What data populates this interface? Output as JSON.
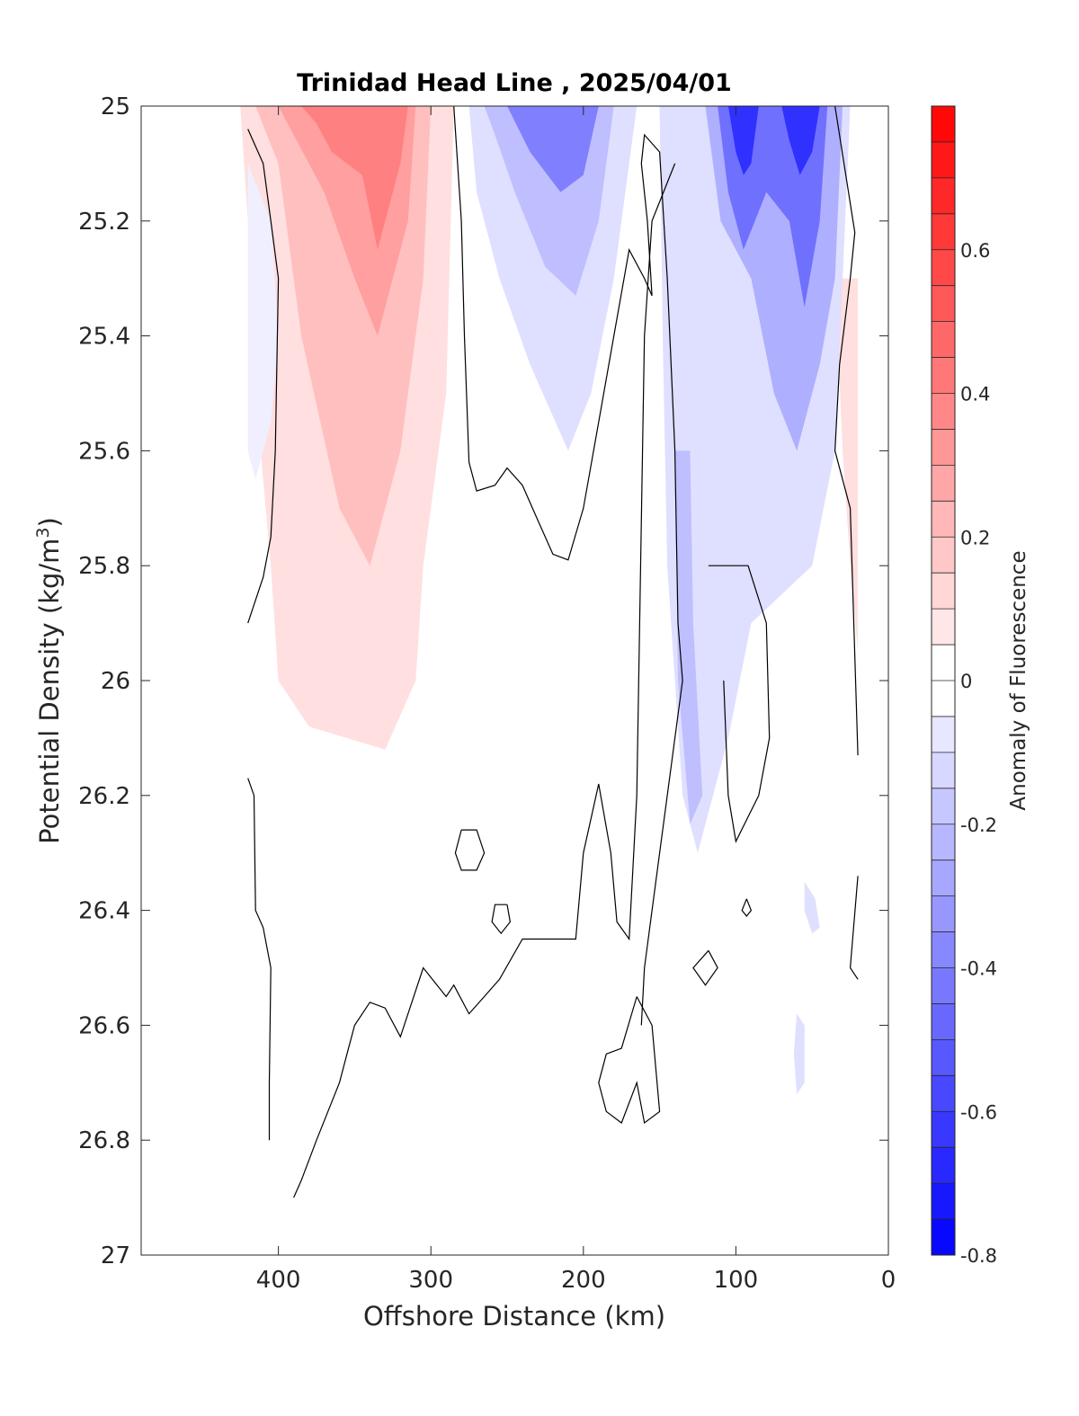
{
  "chart_data": {
    "type": "heatmap",
    "title": "Trinidad Head Line , 2025/04/01",
    "xlabel": "Offshore Distance (km)",
    "ylabel": "Potential Density (kg/m",
    "ylabel_sup": "3",
    "ylabel_close": ")",
    "xlim": [
      490,
      0
    ],
    "ylim": [
      25,
      27
    ],
    "x_reversed": true,
    "y_reversed": true,
    "xticks": [
      400,
      300,
      200,
      100,
      0
    ],
    "yticks": [
      "25",
      "25.2",
      "25.4",
      "25.6",
      "25.8",
      "26",
      "26.2",
      "26.4",
      "26.6",
      "26.8",
      "27"
    ],
    "yticks_values": [
      25,
      25.2,
      25.4,
      25.6,
      25.8,
      26,
      26.2,
      26.4,
      26.6,
      26.8,
      27
    ],
    "colorbar": {
      "label": "Anomaly of Fluorescence",
      "min": -0.8,
      "max": 0.8,
      "step": 0.05,
      "ticks": [
        "0.6",
        "0.4",
        "0.2",
        "0",
        "-0.2",
        "-0.4",
        "-0.6",
        "-0.8"
      ],
      "ticks_values": [
        0.6,
        0.4,
        0.2,
        0,
        -0.2,
        -0.4,
        -0.6,
        -0.8
      ],
      "color_min": "#0000ff",
      "color_mid": "#ffffff",
      "color_max": "#ff0000"
    },
    "anomaly_regions": [
      {
        "value": 0.08,
        "polygon": [
          [
            425,
            25
          ],
          [
            285,
            25
          ],
          [
            290,
            25.5
          ],
          [
            305,
            25.8
          ],
          [
            310,
            26.0
          ],
          [
            330,
            26.12
          ],
          [
            380,
            26.08
          ],
          [
            400,
            26.0
          ],
          [
            405,
            25.8
          ],
          [
            415,
            25.5
          ],
          [
            420,
            25.2
          ]
        ]
      },
      {
        "value": 0.2,
        "polygon": [
          [
            415,
            25
          ],
          [
            300,
            25
          ],
          [
            305,
            25.3
          ],
          [
            320,
            25.6
          ],
          [
            340,
            25.8
          ],
          [
            360,
            25.7
          ],
          [
            385,
            25.4
          ],
          [
            400,
            25.1
          ]
        ]
      },
      {
        "value": 0.32,
        "polygon": [
          [
            400,
            25
          ],
          [
            310,
            25
          ],
          [
            315,
            25.2
          ],
          [
            335,
            25.4
          ],
          [
            350,
            25.3
          ],
          [
            370,
            25.15
          ],
          [
            390,
            25.05
          ]
        ]
      },
      {
        "value": 0.42,
        "polygon": [
          [
            385,
            25
          ],
          [
            315,
            25
          ],
          [
            320,
            25.1
          ],
          [
            335,
            25.25
          ],
          [
            345,
            25.12
          ],
          [
            365,
            25.08
          ],
          [
            375,
            25.03
          ]
        ]
      },
      {
        "value": 0.1,
        "polygon": [
          [
            35,
            25.3
          ],
          [
            20,
            25.3
          ],
          [
            20,
            25.95
          ],
          [
            25,
            25.8
          ],
          [
            30,
            25.6
          ]
        ]
      },
      {
        "value": -0.07,
        "polygon": [
          [
            420,
            25.1
          ],
          [
            405,
            25.2
          ],
          [
            400,
            25.4
          ],
          [
            405,
            25.55
          ],
          [
            415,
            25.65
          ],
          [
            420,
            25.6
          ]
        ]
      },
      {
        "value": -0.08,
        "polygon": [
          [
            275,
            25
          ],
          [
            165,
            25
          ],
          [
            180,
            25.3
          ],
          [
            195,
            25.5
          ],
          [
            210,
            25.6
          ],
          [
            235,
            25.45
          ],
          [
            255,
            25.3
          ],
          [
            270,
            25.15
          ]
        ]
      },
      {
        "value": -0.22,
        "polygon": [
          [
            265,
            25
          ],
          [
            180,
            25
          ],
          [
            190,
            25.2
          ],
          [
            205,
            25.33
          ],
          [
            225,
            25.28
          ],
          [
            245,
            25.15
          ],
          [
            258,
            25.05
          ]
        ]
      },
      {
        "value": -0.38,
        "polygon": [
          [
            250,
            25
          ],
          [
            190,
            25
          ],
          [
            200,
            25.12
          ],
          [
            215,
            25.15
          ],
          [
            235,
            25.08
          ]
        ]
      },
      {
        "value": -0.08,
        "polygon": [
          [
            150,
            25
          ],
          [
            25,
            25
          ],
          [
            30,
            25.3
          ],
          [
            35,
            25.6
          ],
          [
            50,
            25.8
          ],
          [
            70,
            25.85
          ],
          [
            90,
            25.9
          ],
          [
            105,
            26.1
          ],
          [
            125,
            26.3
          ],
          [
            135,
            26.2
          ],
          [
            145,
            25.8
          ],
          [
            148,
            25.4
          ]
        ]
      },
      {
        "value": -0.18,
        "polygon": [
          [
            140,
            25.6
          ],
          [
            130,
            25.6
          ],
          [
            128,
            25.9
          ],
          [
            122,
            26.2
          ],
          [
            130,
            26.25
          ],
          [
            138,
            26.0
          ]
        ]
      },
      {
        "value": -0.25,
        "polygon": [
          [
            120,
            25
          ],
          [
            30,
            25
          ],
          [
            35,
            25.3
          ],
          [
            45,
            25.45
          ],
          [
            60,
            25.6
          ],
          [
            75,
            25.5
          ],
          [
            90,
            25.3
          ],
          [
            110,
            25.2
          ]
        ]
      },
      {
        "value": -0.45,
        "polygon": [
          [
            112,
            25
          ],
          [
            40,
            25
          ],
          [
            45,
            25.2
          ],
          [
            55,
            25.35
          ],
          [
            65,
            25.2
          ],
          [
            80,
            25.15
          ],
          [
            95,
            25.25
          ],
          [
            105,
            25.15
          ]
        ]
      },
      {
        "value": -0.65,
        "polygon": [
          [
            105,
            25
          ],
          [
            85,
            25
          ],
          [
            90,
            25.1
          ],
          [
            95,
            25.12
          ],
          [
            100,
            25.08
          ]
        ]
      },
      {
        "value": -0.65,
        "polygon": [
          [
            70,
            25
          ],
          [
            45,
            25
          ],
          [
            50,
            25.08
          ],
          [
            58,
            25.12
          ],
          [
            65,
            25.06
          ]
        ]
      },
      {
        "value": -0.08,
        "polygon": [
          [
            55,
            26.35
          ],
          [
            48,
            26.38
          ],
          [
            45,
            26.43
          ],
          [
            50,
            26.44
          ],
          [
            55,
            26.4
          ]
        ]
      },
      {
        "value": -0.08,
        "polygon": [
          [
            60,
            26.58
          ],
          [
            55,
            26.6
          ],
          [
            55,
            26.7
          ],
          [
            60,
            26.72
          ],
          [
            62,
            26.65
          ]
        ]
      }
    ],
    "contour_lines_zero": [
      [
        [
          420,
          25.04
        ],
        [
          410,
          25.1
        ],
        [
          405,
          25.2
        ],
        [
          400,
          25.3
        ],
        [
          402,
          25.6
        ],
        [
          405,
          25.75
        ],
        [
          410,
          25.82
        ],
        [
          420,
          25.9
        ]
      ],
      [
        [
          420,
          26.17
        ],
        [
          416,
          26.2
        ],
        [
          415,
          26.4
        ],
        [
          410,
          26.43
        ],
        [
          405,
          26.5
        ],
        [
          406,
          26.7
        ],
        [
          406,
          26.8
        ]
      ],
      [
        [
          285,
          25.0
        ],
        [
          280,
          25.2
        ],
        [
          278,
          25.4
        ],
        [
          275,
          25.62
        ],
        [
          270,
          25.67
        ],
        [
          258,
          25.66
        ],
        [
          250,
          25.63
        ],
        [
          240,
          25.66
        ],
        [
          230,
          25.72
        ],
        [
          220,
          25.78
        ],
        [
          210,
          25.79
        ],
        [
          200,
          25.7
        ],
        [
          190,
          25.55
        ],
        [
          180,
          25.4
        ],
        [
          170,
          25.25
        ],
        [
          160,
          25.3
        ],
        [
          155,
          25.33
        ]
      ],
      [
        [
          155,
          25.33
        ],
        [
          158,
          25.2
        ],
        [
          162,
          25.1
        ],
        [
          160,
          25.05
        ],
        [
          150,
          25.08
        ],
        [
          145,
          25.3
        ],
        [
          140,
          25.6
        ],
        [
          138,
          25.9
        ],
        [
          135,
          26.0
        ],
        [
          150,
          26.3
        ],
        [
          160,
          26.5
        ],
        [
          162,
          26.6
        ]
      ],
      [
        [
          140,
          25.1
        ],
        [
          155,
          25.2
        ],
        [
          160,
          25.4
        ],
        [
          165,
          26.2
        ],
        [
          170,
          26.45
        ],
        [
          178,
          26.42
        ],
        [
          182,
          26.3
        ],
        [
          190,
          26.18
        ],
        [
          200,
          26.3
        ],
        [
          205,
          26.45
        ],
        [
          225,
          26.45
        ],
        [
          240,
          26.45
        ],
        [
          255,
          26.52
        ],
        [
          265,
          26.55
        ],
        [
          275,
          26.58
        ],
        [
          285,
          26.53
        ],
        [
          290,
          26.55
        ],
        [
          305,
          26.5
        ],
        [
          320,
          26.62
        ],
        [
          330,
          26.57
        ],
        [
          340,
          26.56
        ],
        [
          350,
          26.6
        ],
        [
          355,
          26.65
        ],
        [
          360,
          26.7
        ],
        [
          375,
          26.8
        ],
        [
          385,
          26.87
        ],
        [
          390,
          26.9
        ]
      ],
      [
        [
          118,
          25.8
        ],
        [
          92,
          25.8
        ],
        [
          80,
          25.9
        ],
        [
          78,
          26.1
        ],
        [
          85,
          26.2
        ],
        [
          100,
          26.28
        ],
        [
          105,
          26.2
        ],
        [
          108,
          26.0
        ]
      ],
      [
        [
          35,
          25.0
        ],
        [
          22,
          25.22
        ],
        [
          25,
          25.3
        ],
        [
          32,
          25.45
        ],
        [
          35,
          25.6
        ],
        [
          25,
          25.7
        ],
        [
          20,
          26.13
        ]
      ],
      [
        [
          20,
          26.34
        ],
        [
          25,
          26.5
        ],
        [
          20,
          26.52
        ]
      ],
      [
        [
          280,
          26.26
        ],
        [
          270,
          26.26
        ],
        [
          265,
          26.3
        ],
        [
          270,
          26.33
        ],
        [
          280,
          26.33
        ],
        [
          284,
          26.3
        ],
        [
          280,
          26.26
        ]
      ],
      [
        [
          250,
          26.39
        ],
        [
          258,
          26.39
        ],
        [
          260,
          26.42
        ],
        [
          254,
          26.44
        ],
        [
          248,
          26.42
        ],
        [
          250,
          26.39
        ]
      ],
      [
        [
          118,
          26.47
        ],
        [
          112,
          26.5
        ],
        [
          120,
          26.53
        ],
        [
          128,
          26.5
        ],
        [
          118,
          26.47
        ]
      ],
      [
        [
          165,
          26.55
        ],
        [
          155,
          26.6
        ],
        [
          150,
          26.75
        ],
        [
          160,
          26.77
        ],
        [
          165,
          26.7
        ],
        [
          175,
          26.77
        ],
        [
          185,
          26.75
        ],
        [
          190,
          26.7
        ],
        [
          185,
          26.65
        ],
        [
          175,
          26.64
        ],
        [
          165,
          26.55
        ]
      ],
      [
        [
          93,
          26.38
        ],
        [
          90,
          26.4
        ],
        [
          93,
          26.41
        ],
        [
          96,
          26.4
        ],
        [
          93,
          26.38
        ]
      ]
    ]
  }
}
